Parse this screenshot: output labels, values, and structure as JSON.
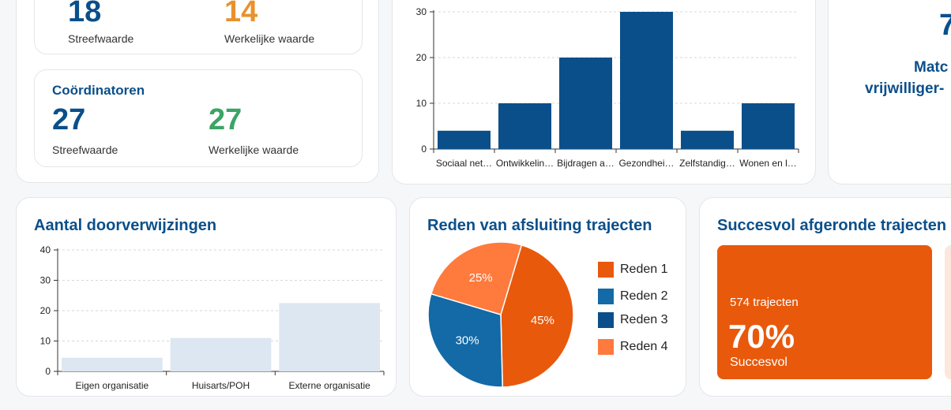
{
  "top_left_card": {
    "target_kpi": {
      "streef_value": "18",
      "werkelijk_value": "14",
      "streef_label": "Streefwaarde",
      "werkelijk_label": "Werkelijke waarde"
    },
    "coordinatoren_kpi": {
      "title": "Coördinatoren",
      "streef_value": "27",
      "werkelijk_value": "27",
      "streef_label": "Streefwaarde",
      "werkelijk_label": "Werkelijke waarde"
    }
  },
  "right_partial_card": {
    "number": "7",
    "line1": "Matc",
    "line2": "vrijwilliger-"
  },
  "doorverwijzingen": {
    "title": "Aantal doorverwijzingen"
  },
  "afsluiting": {
    "title": "Reden van afsluiting trajecten"
  },
  "succesvol": {
    "title": "Succesvol afgeronde trajecten",
    "count_text": "574 trajecten",
    "percent": "70%",
    "status_label": "Succesvol"
  },
  "colors": {
    "dark_blue": "#0b4f8a",
    "orange": "#e8590c",
    "light_orange": "#ff7a3d",
    "mid_blue": "#136aa6",
    "light_bar": "#dde7f1",
    "green": "#3aa565",
    "kpi_orange": "#e8922e"
  },
  "chart_data": [
    {
      "type": "bar",
      "categories": [
        "Sociaal net…",
        "Ontwikkelin…",
        "Bijdragen a…",
        "Gezondhei…",
        "Zelfstandig…",
        "Wonen en l…"
      ],
      "values": [
        4,
        10,
        20,
        30,
        4,
        10
      ],
      "ylim": [
        0,
        30
      ],
      "yticks": [
        0,
        10,
        20,
        30
      ],
      "grid": true,
      "color": "#0b4f8a"
    },
    {
      "type": "bar",
      "title": "Aantal doorverwijzingen",
      "categories": [
        "Eigen organisatie",
        "Huisarts/POH",
        "Externe organisatie"
      ],
      "values": [
        4.5,
        11,
        22.5
      ],
      "ylim": [
        0,
        40
      ],
      "yticks": [
        0,
        10,
        20,
        30,
        40
      ],
      "grid": true,
      "color": "#dde7f1"
    },
    {
      "type": "pie",
      "title": "Reden van afsluiting trajecten",
      "labels": [
        "Reden 1",
        "Reden 2",
        "Reden 3",
        "Reden 4"
      ],
      "values": [
        45,
        30,
        0,
        25
      ],
      "value_labels": [
        "45%",
        "30%",
        "",
        "25%"
      ],
      "colors": [
        "#e8590c",
        "#136aa6",
        "#0b4f8a",
        "#ff7a3d"
      ],
      "legend": "right"
    }
  ]
}
